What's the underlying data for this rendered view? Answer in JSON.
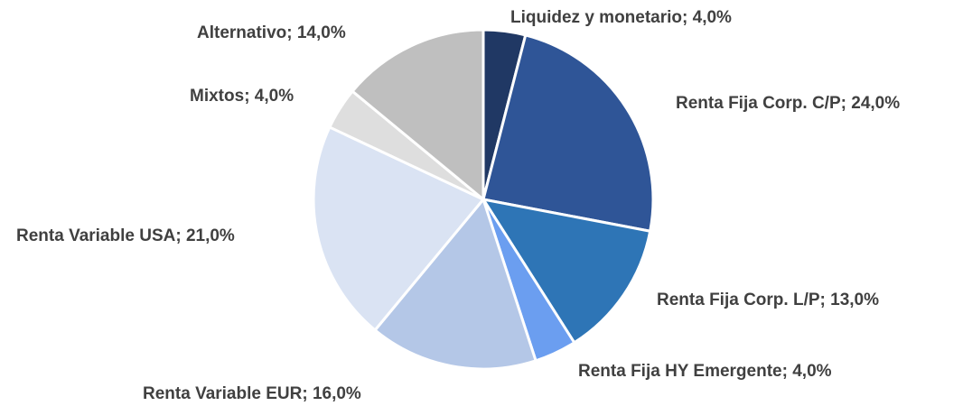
{
  "chart_data": {
    "type": "pie",
    "categories": [
      "Liquidez y monetario",
      "Renta Fija Corp. C/P",
      "Renta Fija Corp. L/P",
      "Renta Fija HY Emergente",
      "Renta Variable EUR",
      "Renta Variable USA",
      "Mixtos",
      "Alternativo"
    ],
    "values": [
      4,
      24,
      13,
      4,
      16,
      21,
      4,
      14
    ],
    "value_labels": [
      "4,0%",
      "24,0%",
      "13,0%",
      "4,0%",
      "16,0%",
      "21,0%",
      "4,0%",
      "14,0%"
    ],
    "label_separator": "; ",
    "colors": [
      "#203864",
      "#2f5597",
      "#2e75b6",
      "#6b9ef0",
      "#b4c7e7",
      "#dae3f3",
      "#dedede",
      "#bfbfbf"
    ]
  }
}
